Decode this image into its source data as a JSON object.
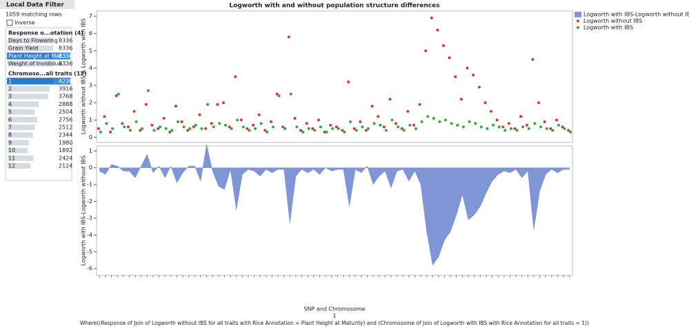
{
  "filter": {
    "title": "Local Data Filter",
    "matching": "1059 matching rows",
    "inverse": "Inverse",
    "groups": [
      {
        "title": "Response o...otation (4)",
        "selected": 2,
        "items": [
          {
            "label": "Days to Flowering",
            "count": 8336
          },
          {
            "label": "Grain Yield",
            "count": 8336
          },
          {
            "label": "Plant Height at Mat...",
            "count": 8336
          },
          {
            "label": "Weight of Invididua...",
            "count": 8336
          }
        ]
      },
      {
        "title": "Chromoso...all traits (12)",
        "selected": 0,
        "items": [
          {
            "label": "1",
            "count": 4236
          },
          {
            "label": "2",
            "count": 3916
          },
          {
            "label": "3",
            "count": 3768
          },
          {
            "label": "4",
            "count": 2888
          },
          {
            "label": "5",
            "count": 2504
          },
          {
            "label": "6",
            "count": 2756
          },
          {
            "label": "7",
            "count": 2512
          },
          {
            "label": "8",
            "count": 2344
          },
          {
            "label": "9",
            "count": 1980
          },
          {
            "label": "10",
            "count": 1892
          },
          {
            "label": "11",
            "count": 2424
          },
          {
            "label": "12",
            "count": 2124
          }
        ]
      }
    ]
  },
  "chart_data": [
    {
      "type": "scatter",
      "title": "Logworth with and without population structure differences",
      "y_label": "Logworth without IBS & Logworth with IBS",
      "ylim": [
        -0.3,
        7.3
      ],
      "yticks": [
        0,
        1,
        2,
        3,
        4,
        5,
        6,
        7
      ],
      "series": [
        {
          "name": "Logworth without IBS",
          "color": "#e0303c",
          "values": [
            0.5,
            1.2,
            0.3,
            2.4,
            0.8,
            0.6,
            1.5,
            0.4,
            1.9,
            0.7,
            0.5,
            1.1,
            0.3,
            1.8,
            0.9,
            0.4,
            0.6,
            1.3,
            0.5,
            0.8,
            1.9,
            2.0,
            0.6,
            3.5,
            1.0,
            0.5,
            0.7,
            1.3,
            0.4,
            0.9,
            2.5,
            0.6,
            5.8,
            1.1,
            0.4,
            0.8,
            0.5,
            1.0,
            0.3,
            0.7,
            0.6,
            0.4,
            3.2,
            0.5,
            0.9,
            0.4,
            1.8,
            1.2,
            0.6,
            2.2,
            0.8,
            0.5,
            1.5,
            0.7,
            1.9,
            5.0,
            6.9,
            6.2,
            5.3,
            4.6,
            3.5,
            2.2,
            4.0,
            3.6,
            2.9,
            2.0,
            1.5,
            1.0,
            0.6,
            0.8,
            0.5,
            1.2,
            0.7,
            4.5,
            2.0,
            0.9,
            0.5,
            1.0,
            0.6,
            0.4
          ]
        },
        {
          "name": "Logworth with IBS",
          "color": "#2eaa3a",
          "values": [
            0.3,
            0.8,
            0.5,
            2.5,
            0.6,
            0.4,
            0.9,
            0.5,
            2.7,
            0.4,
            0.6,
            0.5,
            0.4,
            0.9,
            0.6,
            0.5,
            0.7,
            0.5,
            1.9,
            0.6,
            0.8,
            0.7,
            0.5,
            1.0,
            0.6,
            0.4,
            0.5,
            0.8,
            0.3,
            0.6,
            2.4,
            0.5,
            2.5,
            0.6,
            0.3,
            0.5,
            0.4,
            0.6,
            0.3,
            0.5,
            0.5,
            0.3,
            0.9,
            0.4,
            0.6,
            0.5,
            0.8,
            0.7,
            0.4,
            1.0,
            0.6,
            0.4,
            0.7,
            0.5,
            0.9,
            1.2,
            1.1,
            0.9,
            1.0,
            0.8,
            0.7,
            0.6,
            0.9,
            0.8,
            0.6,
            0.5,
            0.7,
            0.6,
            0.4,
            0.5,
            0.4,
            0.6,
            0.5,
            0.8,
            0.6,
            0.5,
            0.4,
            0.7,
            0.5,
            0.3
          ]
        }
      ]
    },
    {
      "type": "area",
      "y_label": "Logworth with IBS-Logworth without IBS",
      "x_label": "SNP and Chromosome",
      "group_label": "1",
      "note": "Where((Response of Join of Logworth without IBS for all traits with Rice Annotation = Plant Height at Maturity) and (Chromosome of Join of Logworth with IBS with Rice Annotation for all traits = 1))",
      "ylim": [
        -6.4,
        1.3
      ],
      "yticks": [
        -6,
        -5,
        -4,
        -3,
        -2,
        -1,
        0,
        1
      ],
      "categories": [
        null,
        null,
        null,
        null,
        null,
        null,
        null,
        null,
        null,
        null,
        null,
        null,
        null,
        null,
        null,
        null,
        null,
        null,
        null,
        null,
        null,
        null,
        null,
        null,
        null,
        null,
        null,
        null,
        null,
        null,
        null,
        null,
        null,
        null,
        null,
        null,
        null,
        null,
        null,
        null,
        null,
        null,
        null,
        null,
        null,
        null,
        null,
        null,
        null,
        null,
        null,
        null,
        null,
        null,
        null,
        null,
        null,
        null,
        null,
        null,
        null,
        null,
        null,
        null,
        null,
        null,
        null,
        null,
        null,
        null,
        null,
        null,
        null,
        null,
        null,
        null,
        null,
        null,
        null,
        null
      ],
      "series": [
        {
          "name": "Logworth with IBS-Logworth without IBS",
          "color": "#7f95d6",
          "values": [
            -0.2,
            -0.4,
            0.2,
            0.1,
            -0.2,
            -0.2,
            -0.6,
            0.1,
            0.8,
            -0.3,
            0.1,
            -0.6,
            0.1,
            -0.9,
            -0.3,
            0.1,
            0.1,
            -0.8,
            1.4,
            -0.2,
            -1.1,
            -1.3,
            -0.1,
            -2.5,
            -0.4,
            -0.1,
            -0.2,
            -0.5,
            -0.1,
            -0.3,
            -0.1,
            -0.1,
            -3.3,
            -0.5,
            -0.1,
            -0.3,
            -0.1,
            -0.4,
            0,
            -0.2,
            -0.1,
            -0.1,
            -2.3,
            -0.1,
            -0.3,
            0.1,
            -1.0,
            -0.5,
            -0.2,
            -1.2,
            -0.2,
            -0.1,
            -0.8,
            -0.2,
            -1.0,
            -3.8,
            -5.8,
            -5.3,
            -4.3,
            -3.8,
            -2.8,
            -1.6,
            -3.1,
            -2.8,
            -2.3,
            -1.5,
            -0.8,
            -0.4,
            -0.2,
            -0.3,
            -0.1,
            -0.6,
            -0.2,
            -3.7,
            -1.4,
            -0.4,
            -0.1,
            -0.3,
            -0.1,
            -0.1
          ]
        }
      ]
    }
  ]
}
